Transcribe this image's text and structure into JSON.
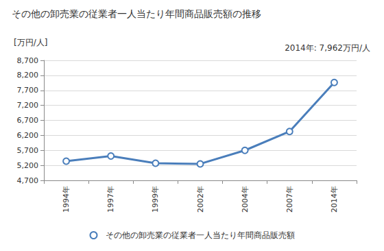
{
  "chart_data": {
    "type": "line",
    "title": "その他の卸売業の従業者一人当たり年間商品販売額の推移",
    "ylabel": "[万円/人]",
    "annotation": "2014年: 7,962万円/人",
    "categories": [
      "1994年",
      "1997年",
      "1999年",
      "2002年",
      "2004年",
      "2007年",
      "2014年"
    ],
    "series": [
      {
        "name": "その他の卸売業の従業者一人当たり年間商品販売額",
        "color": "#4a7ebb",
        "marker": "circle",
        "values": [
          5340,
          5510,
          5270,
          5250,
          5700,
          6330,
          7962
        ]
      }
    ],
    "ylim": [
      4700,
      8700
    ],
    "yticks": [
      {
        "value": 4700,
        "label": "4,700"
      },
      {
        "value": 5200,
        "label": "5,200"
      },
      {
        "value": 5700,
        "label": "5,700"
      },
      {
        "value": 6200,
        "label": "6,200"
      },
      {
        "value": 6700,
        "label": "6,700"
      },
      {
        "value": 7200,
        "label": "7,200"
      },
      {
        "value": 7700,
        "label": "7,700"
      },
      {
        "value": 8200,
        "label": "8,200"
      },
      {
        "value": 8700,
        "label": "8,700"
      }
    ],
    "grid": true,
    "legend": "bottom"
  }
}
